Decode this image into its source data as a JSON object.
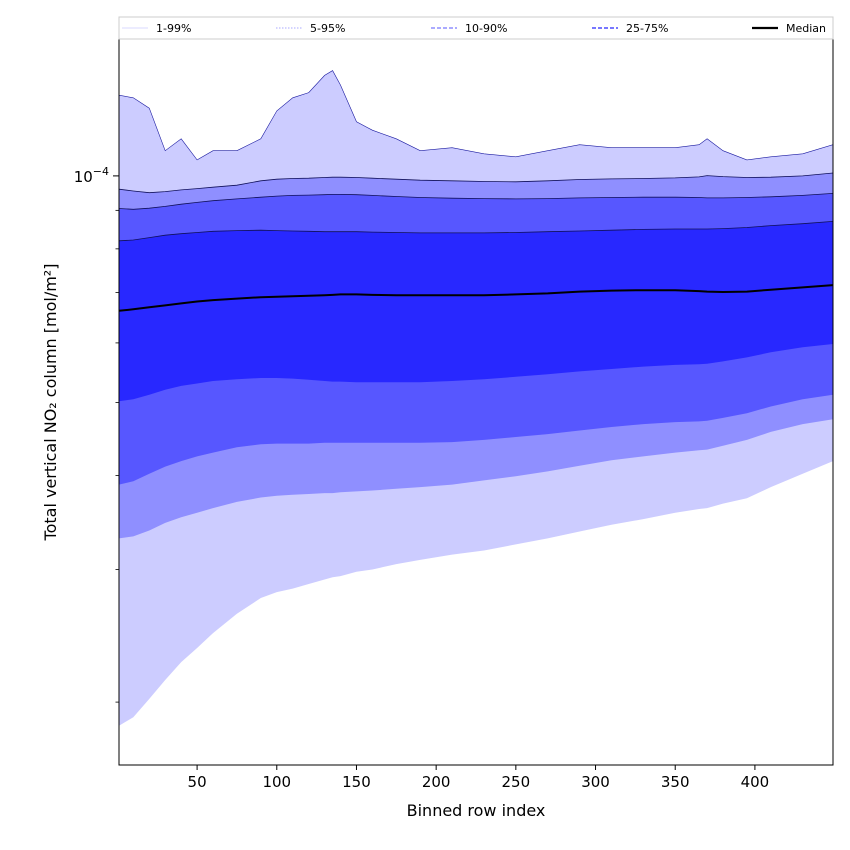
{
  "chart_data": {
    "type": "area",
    "title": "",
    "xlabel": "Binned row index",
    "ylabel": "Total vertical NO₂ column [mol/m²]",
    "yscale": "log",
    "xlim": [
      1,
      449
    ],
    "ylim": [
      1.65e-05,
      0.000152
    ],
    "x_ticks": [
      50,
      100,
      150,
      200,
      250,
      300,
      350,
      400
    ],
    "x_tick_labels": [
      "50",
      "100",
      "150",
      "200",
      "250",
      "300",
      "350",
      "400"
    ],
    "y_major_tick": 0.0001,
    "y_major_tick_label_base": "10",
    "y_major_tick_label_exp": "−4",
    "y_minor_ticks": [
      2e-05,
      3e-05,
      4e-05,
      5e-05,
      6e-05,
      7e-05,
      8e-05,
      9e-05
    ],
    "x": [
      1,
      10,
      20,
      30,
      40,
      50,
      60,
      75,
      90,
      100,
      110,
      120,
      130,
      135,
      140,
      150,
      160,
      175,
      190,
      210,
      230,
      250,
      270,
      290,
      310,
      330,
      350,
      365,
      370,
      380,
      395,
      410,
      430,
      449
    ],
    "bands": [
      {
        "name": "1-99%",
        "color": "#ccccff",
        "upper": [
          0.000128,
          0.000127,
          0.000123,
          0.000108,
          0.000112,
          0.000105,
          0.000108,
          0.000108,
          0.000112,
          0.000122,
          0.000127,
          0.000129,
          0.000136,
          0.000138,
          0.000132,
          0.000118,
          0.000115,
          0.000112,
          0.000108,
          0.000109,
          0.000107,
          0.000106,
          0.000108,
          0.00011,
          0.000109,
          0.000109,
          0.000109,
          0.00011,
          0.000112,
          0.000108,
          0.000105,
          0.000106,
          0.000107,
          0.00011
        ],
        "lower": [
          1.86e-05,
          1.91e-05,
          2.02e-05,
          2.14e-05,
          2.26e-05,
          2.36e-05,
          2.47e-05,
          2.62e-05,
          2.75e-05,
          2.8e-05,
          2.83e-05,
          2.87e-05,
          2.91e-05,
          2.93e-05,
          2.94e-05,
          2.98e-05,
          3e-05,
          3.05e-05,
          3.09e-05,
          3.14e-05,
          3.18e-05,
          3.24e-05,
          3.3e-05,
          3.37e-05,
          3.44e-05,
          3.5e-05,
          3.57e-05,
          3.61e-05,
          3.62e-05,
          3.67e-05,
          3.73e-05,
          3.86e-05,
          4.02e-05,
          4.18e-05
        ]
      },
      {
        "name": "5-95%",
        "color": "#8f8fff",
        "upper": [
          9.6e-05,
          9.55e-05,
          9.5e-05,
          9.53e-05,
          9.58e-05,
          9.62e-05,
          9.66e-05,
          9.72e-05,
          9.85e-05,
          9.9e-05,
          9.92e-05,
          9.93e-05,
          9.95e-05,
          9.96e-05,
          9.96e-05,
          9.95e-05,
          9.93e-05,
          9.9e-05,
          9.87e-05,
          9.85e-05,
          9.83e-05,
          9.82e-05,
          9.85e-05,
          9.89e-05,
          9.91e-05,
          9.92e-05,
          9.94e-05,
          9.97e-05,
          0.0001001,
          9.98e-05,
          9.95e-05,
          9.96e-05,
          0.0001,
          0.0001009
        ],
        "lower": [
          3.3e-05,
          3.32e-05,
          3.38e-05,
          3.46e-05,
          3.52e-05,
          3.57e-05,
          3.62e-05,
          3.69e-05,
          3.74e-05,
          3.76e-05,
          3.77e-05,
          3.78e-05,
          3.79e-05,
          3.79e-05,
          3.8e-05,
          3.81e-05,
          3.82e-05,
          3.84e-05,
          3.86e-05,
          3.89e-05,
          3.94e-05,
          3.99e-05,
          4.05e-05,
          4.12e-05,
          4.19e-05,
          4.24e-05,
          4.29e-05,
          4.32e-05,
          4.33e-05,
          4.38e-05,
          4.46e-05,
          4.57e-05,
          4.68e-05,
          4.75e-05
        ]
      },
      {
        "name": "10-90%",
        "color": "#5757ff",
        "upper": [
          9.05e-05,
          9.03e-05,
          9.06e-05,
          9.11e-05,
          9.17e-05,
          9.22e-05,
          9.27e-05,
          9.32e-05,
          9.37e-05,
          9.4e-05,
          9.42e-05,
          9.43e-05,
          9.44e-05,
          9.45e-05,
          9.45e-05,
          9.44e-05,
          9.42e-05,
          9.39e-05,
          9.36e-05,
          9.34e-05,
          9.33e-05,
          9.32e-05,
          9.33e-05,
          9.35e-05,
          9.36e-05,
          9.37e-05,
          9.37e-05,
          9.36e-05,
          9.35e-05,
          9.35e-05,
          9.36e-05,
          9.38e-05,
          9.42e-05,
          9.48e-05
        ],
        "lower": [
          3.89e-05,
          3.93e-05,
          4.02e-05,
          4.11e-05,
          4.18e-05,
          4.24e-05,
          4.29e-05,
          4.36e-05,
          4.4e-05,
          4.41e-05,
          4.41e-05,
          4.41e-05,
          4.42e-05,
          4.42e-05,
          4.42e-05,
          4.42e-05,
          4.42e-05,
          4.42e-05,
          4.42e-05,
          4.43e-05,
          4.46e-05,
          4.5e-05,
          4.54e-05,
          4.59e-05,
          4.64e-05,
          4.68e-05,
          4.71e-05,
          4.72e-05,
          4.73e-05,
          4.77e-05,
          4.84e-05,
          4.94e-05,
          5.05e-05,
          5.12e-05
        ]
      },
      {
        "name": "25-75%",
        "color": "#2828ff",
        "upper": [
          8.2e-05,
          8.22e-05,
          8.28e-05,
          8.34e-05,
          8.38e-05,
          8.41e-05,
          8.44e-05,
          8.46e-05,
          8.47e-05,
          8.46e-05,
          8.45e-05,
          8.44e-05,
          8.43e-05,
          8.43e-05,
          8.43e-05,
          8.43e-05,
          8.42e-05,
          8.41e-05,
          8.4e-05,
          8.4e-05,
          8.4e-05,
          8.41e-05,
          8.43e-05,
          8.45e-05,
          8.47e-05,
          8.49e-05,
          8.5e-05,
          8.5e-05,
          8.5e-05,
          8.51e-05,
          8.54e-05,
          8.59e-05,
          8.64e-05,
          8.7e-05
        ],
        "lower": [
          5.02e-05,
          5.05e-05,
          5.12e-05,
          5.2e-05,
          5.26e-05,
          5.3e-05,
          5.34e-05,
          5.37e-05,
          5.39e-05,
          5.39e-05,
          5.38e-05,
          5.36e-05,
          5.34e-05,
          5.33e-05,
          5.33e-05,
          5.32e-05,
          5.32e-05,
          5.32e-05,
          5.32e-05,
          5.34e-05,
          5.37e-05,
          5.41e-05,
          5.45e-05,
          5.5e-05,
          5.54e-05,
          5.58e-05,
          5.61e-05,
          5.62e-05,
          5.63e-05,
          5.67e-05,
          5.74e-05,
          5.83e-05,
          5.92e-05,
          5.98e-05
        ]
      }
    ],
    "median": {
      "name": "Median",
      "color": "#000000",
      "values": [
        6.62e-05,
        6.65e-05,
        6.69e-05,
        6.73e-05,
        6.77e-05,
        6.81e-05,
        6.84e-05,
        6.87e-05,
        6.9e-05,
        6.91e-05,
        6.92e-05,
        6.93e-05,
        6.94e-05,
        6.95e-05,
        6.96e-05,
        6.96e-05,
        6.95e-05,
        6.94e-05,
        6.94e-05,
        6.94e-05,
        6.94e-05,
        6.96e-05,
        6.98e-05,
        7.02e-05,
        7.04e-05,
        7.05e-05,
        7.05e-05,
        7.03e-05,
        7.02e-05,
        7.01e-05,
        7.02e-05,
        7.06e-05,
        7.11e-05,
        7.16e-05
      ]
    },
    "legend": {
      "position": "top",
      "entries": [
        {
          "label": "1-99%",
          "color": "#ccccff",
          "style": "solid",
          "width": 0.8
        },
        {
          "label": "5-95%",
          "color": "#8f8fff",
          "style": "dotted",
          "width": 0.8
        },
        {
          "label": "10-90%",
          "color": "#5757ff",
          "style": "dashed",
          "width": 1
        },
        {
          "label": "25-75%",
          "color": "#2828ff",
          "style": "dashed",
          "width": 1.2
        },
        {
          "label": "Median",
          "color": "#000000",
          "style": "solid",
          "width": 2.2
        }
      ]
    }
  }
}
